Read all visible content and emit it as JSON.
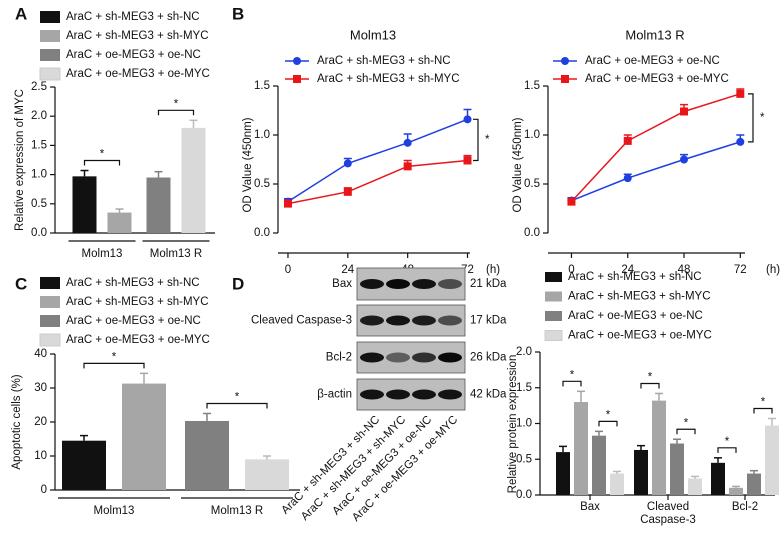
{
  "chart_data": [
    {
      "type": "bar",
      "panel": "A",
      "ylabel": "Relative expression of MYC",
      "categories": [
        "Molm13",
        "Molm13 R"
      ],
      "series": [
        {
          "name": "AraC + sh-MEG3 + sh-NC",
          "color": "#111111",
          "values": [
            0.97,
            null
          ],
          "errors": [
            0.1,
            null
          ]
        },
        {
          "name": "AraC + sh-MEG3 + sh-MYC",
          "color": "#a6a6a6",
          "values": [
            0.35,
            null
          ],
          "errors": [
            0.06,
            null
          ]
        },
        {
          "name": "AraC + oe-MEG3 + oe-NC",
          "color": "#808080",
          "values": [
            null,
            0.95
          ],
          "errors": [
            null,
            0.1
          ]
        },
        {
          "name": "AraC + oe-MEG3 + oe-MYC",
          "color": "#d9d9d9",
          "values": [
            null,
            1.8
          ],
          "errors": [
            null,
            0.13
          ]
        }
      ],
      "ylim": [
        0,
        2.5
      ],
      "yticks": [
        {
          "value": 0,
          "label": "0.0"
        },
        0.5,
        {
          "value": 1,
          "label": "1.0"
        },
        1.5,
        {
          "value": 2,
          "label": "2.0"
        },
        2.5
      ],
      "annotations": [
        "*",
        "*"
      ]
    },
    {
      "type": "line",
      "panel": "B",
      "title": "Molm13",
      "ylabel": "OD Value (450nm)",
      "xunit": "(h)",
      "x": [
        0,
        24,
        48,
        72
      ],
      "series": [
        {
          "name": "AraC + sh-MEG3 + sh-NC",
          "color": "#1f3fe0",
          "marker": "circle",
          "values": [
            0.32,
            0.71,
            0.92,
            1.16
          ],
          "errors": [
            0.03,
            0.05,
            0.09,
            0.1
          ]
        },
        {
          "name": "AraC + sh-MEG3 + sh-MYC",
          "color": "#e8161b",
          "marker": "square",
          "values": [
            0.3,
            0.42,
            0.68,
            0.74
          ],
          "errors": [
            0.02,
            0.04,
            0.06,
            0.05
          ]
        }
      ],
      "xlim": [
        -4,
        73
      ],
      "xticks": [
        0,
        24,
        48,
        72
      ],
      "ylim": [
        0,
        1.5
      ],
      "yticks": [
        {
          "value": 0,
          "label": "0.0"
        },
        0.5,
        {
          "value": 1,
          "label": "1.0"
        },
        1.5
      ],
      "annotations": [
        "*"
      ]
    },
    {
      "type": "line",
      "title": "Molm13 R",
      "ylabel": "OD Value (450nm)",
      "xunit": "(h)",
      "x": [
        0,
        24,
        48,
        72
      ],
      "series": [
        {
          "name": "AraC + oe-MEG3 + oe-NC",
          "color": "#1f3fe0",
          "marker": "circle",
          "values": [
            0.33,
            0.56,
            0.75,
            0.93
          ],
          "errors": [
            0.03,
            0.04,
            0.05,
            0.07
          ]
        },
        {
          "name": "AraC + oe-MEG3 + oe-MYC",
          "color": "#e8161b",
          "marker": "square",
          "values": [
            0.32,
            0.94,
            1.24,
            1.42
          ],
          "errors": [
            0.02,
            0.06,
            0.07,
            0.05
          ]
        }
      ],
      "xlim": [
        -10,
        74
      ],
      "xticks": [
        0,
        24,
        48,
        72
      ],
      "ylim": [
        0,
        1.5
      ],
      "yticks": [
        {
          "value": 0,
          "label": "0.0"
        },
        0.5,
        {
          "value": 1,
          "label": "1.0"
        },
        1.5
      ],
      "annotations": [
        "*"
      ]
    },
    {
      "type": "bar",
      "panel": "C",
      "ylabel": "Apoptotic cells (%)",
      "categories": [
        "Molm13",
        "Molm13 R"
      ],
      "series": [
        {
          "name": "AraC + sh-MEG3 + sh-NC",
          "color": "#111111",
          "values": [
            14.5,
            null
          ],
          "errors": [
            1.5,
            null
          ]
        },
        {
          "name": "AraC + sh-MEG3 + sh-MYC",
          "color": "#a6a6a6",
          "values": [
            31.3,
            null
          ],
          "errors": [
            3,
            null
          ]
        },
        {
          "name": "AraC + oe-MEG3 + oe-NC",
          "color": "#808080",
          "values": [
            null,
            20.3
          ],
          "errors": [
            null,
            2.2
          ]
        },
        {
          "name": "AraC + oe-MEG3 + oe-MYC",
          "color": "#d9d9d9",
          "values": [
            null,
            9
          ],
          "errors": [
            null,
            1
          ]
        }
      ],
      "ylim": [
        0,
        40
      ],
      "yticks": [
        0,
        10,
        20,
        30,
        40
      ],
      "annotations": [
        "*",
        "*"
      ]
    },
    {
      "type": "bar",
      "panel": "D",
      "ylabel": "Relative protein expression",
      "categories": [
        "Bax",
        "Cleaved Caspase-3",
        "Bcl-2"
      ],
      "series": [
        {
          "name": "AraC + sh-MEG3 + sh-NC",
          "color": "#111111",
          "values": [
            0.6,
            0.63,
            0.45
          ],
          "errors": [
            0.08,
            0.06,
            0.07
          ]
        },
        {
          "name": "AraC + sh-MEG3 + sh-MYC",
          "color": "#a6a6a6",
          "values": [
            1.3,
            1.32,
            0.1
          ],
          "errors": [
            0.15,
            0.1,
            0.02
          ]
        },
        {
          "name": "AraC + oe-MEG3 + oe-NC",
          "color": "#808080",
          "values": [
            0.83,
            0.72,
            0.3
          ],
          "errors": [
            0.06,
            0.06,
            0.04
          ]
        },
        {
          "name": "AraC + oe-MEG3 + oe-MYC",
          "color": "#d9d9d9",
          "values": [
            0.3,
            0.23,
            0.97
          ],
          "errors": [
            0.03,
            0.03,
            0.1
          ]
        }
      ],
      "ylim": [
        0,
        2
      ],
      "yticks": [
        {
          "value": 0,
          "label": "0.0"
        },
        0.5,
        {
          "value": 1,
          "label": "1.0"
        },
        1.5,
        {
          "value": 2,
          "label": "2.0"
        }
      ],
      "annotations": [
        "*",
        "*",
        "*",
        "*",
        "*",
        "*"
      ]
    }
  ],
  "blot": {
    "bands": [
      {
        "name": "Bax",
        "size": "21 kDa"
      },
      {
        "name": "Cleaved Caspase-3",
        "size": "17 kDa"
      },
      {
        "name": "Bcl-2",
        "size": "26 kDa"
      },
      {
        "name": "β-actin",
        "size": "42 kDa"
      }
    ],
    "lanes": [
      "AraC + sh-MEG3 + sh-NC",
      "AraC + sh-MEG3 + sh-MYC",
      "AraC + oe-MEG3 + oe-NC",
      "AraC + oe-MEG3 + oe-MYC"
    ]
  }
}
